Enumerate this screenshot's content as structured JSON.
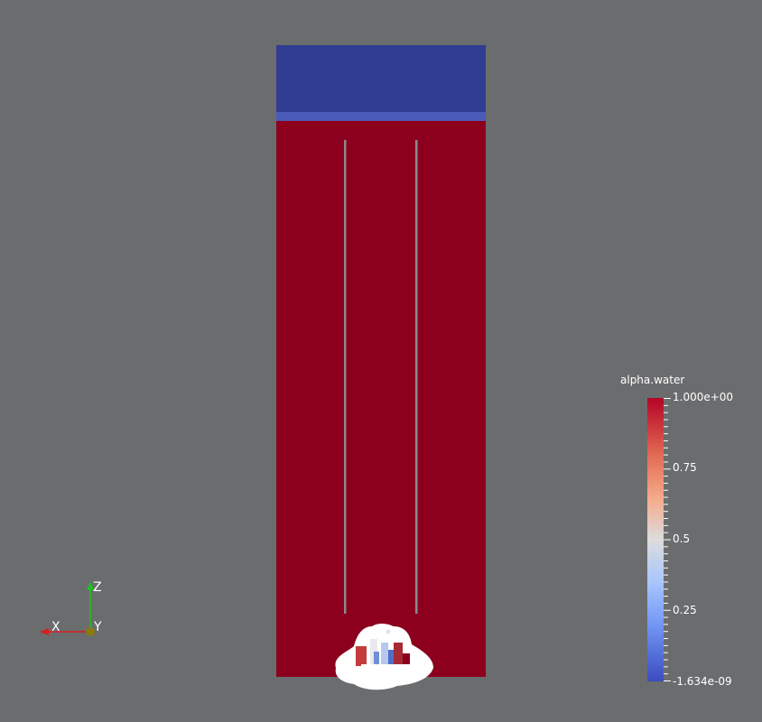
{
  "colorbar": {
    "title": "alpha.water",
    "max_label": "1.000e+00",
    "label_075": "0.75",
    "label_05": "0.5",
    "label_025": "0.25",
    "min_label": "-1.634e-09",
    "colors": {
      "high": "#b40426",
      "mid": "#dddcdc",
      "low": "#3b4cc0"
    }
  },
  "axes": {
    "x_label": "X",
    "y_label": "Y",
    "z_label": "Z",
    "colors": {
      "x": "#d62020",
      "y": "#8a7a10",
      "z": "#20c020"
    }
  },
  "domain": {
    "colors": {
      "water": "#8c001e",
      "air": "#2f3c92",
      "interface": "#4a5bb8",
      "baffle": "#8a8a8c",
      "background": "#6b6c6e"
    }
  }
}
